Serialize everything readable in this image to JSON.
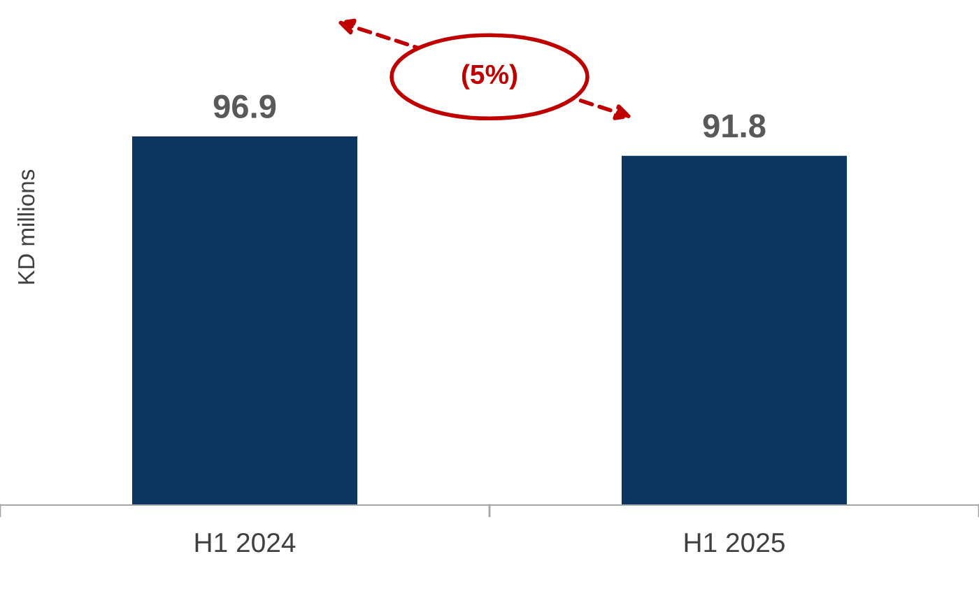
{
  "chart_data": {
    "type": "bar",
    "categories": [
      "H1 2024",
      "H1 2025"
    ],
    "values": [
      96.9,
      91.8
    ],
    "color": "#0c3461",
    "ylabel": "KD millions",
    "annotations": [
      "(5%)"
    ],
    "data_labels": true
  }
}
